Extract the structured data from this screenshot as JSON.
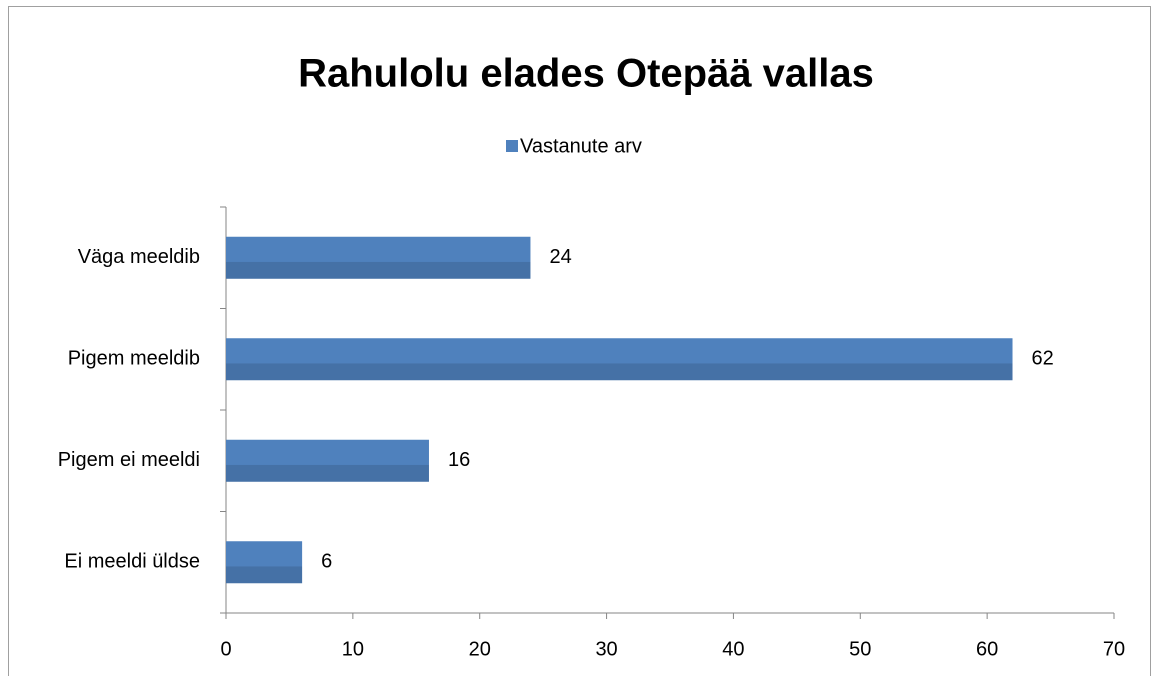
{
  "chart_data": {
    "type": "bar",
    "orientation": "horizontal",
    "title": "Rahulolu elades Otepää vallas",
    "categories": [
      "Väga meeldib",
      "Pigem meeldib",
      "Pigem ei meeldi",
      "Ei meeldi üldse"
    ],
    "series": [
      {
        "name": "Vastanute arv",
        "color": "#4f81bd",
        "values": [
          24,
          62,
          16,
          6
        ]
      }
    ],
    "xlim": [
      0,
      70
    ],
    "xticks": [
      0,
      10,
      20,
      30,
      40,
      50,
      60,
      70
    ],
    "legend": "top",
    "grid": false
  }
}
